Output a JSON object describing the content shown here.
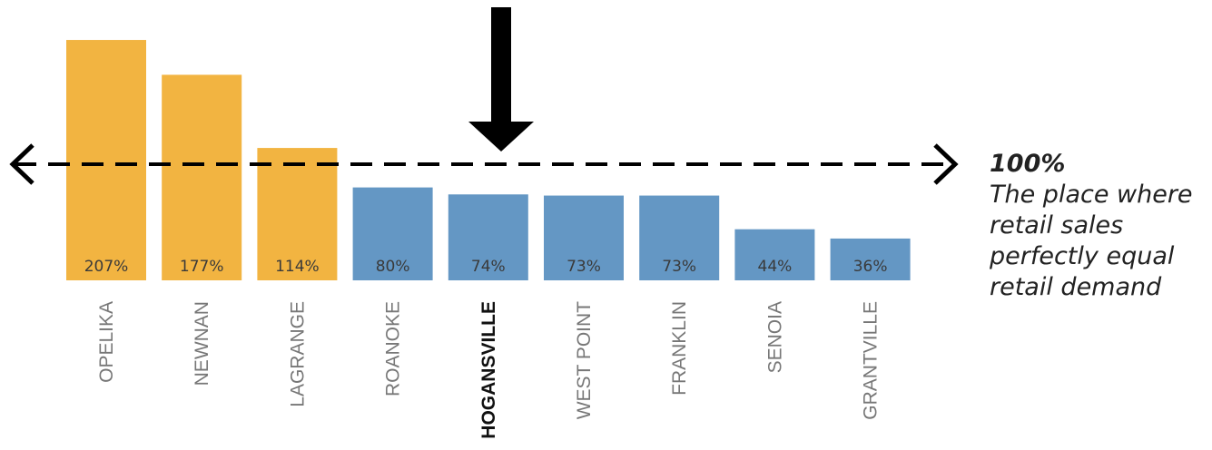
{
  "chart_data": {
    "type": "bar",
    "categories": [
      "OPELIKA",
      "NEWNAN",
      "LAGRANGE",
      "ROANOKE",
      "HOGANSVILLE",
      "WEST POINT",
      "FRANKLIN",
      "SENOIA",
      "GRANTVILLE"
    ],
    "values": [
      207,
      177,
      114,
      80,
      74,
      73,
      73,
      44,
      36
    ],
    "labels": [
      "207%",
      "177%",
      "114%",
      "80%",
      "74%",
      "73%",
      "73%",
      "44%",
      "36%"
    ],
    "highlight": "HOGANSVILLE",
    "reference_line": 100,
    "colors": {
      "above": "#F2B441",
      "below": "#6497C4",
      "line": "#000000"
    }
  },
  "annotation": {
    "value": "100%",
    "text": "The place where retail sales perfectly equal retail demand"
  }
}
